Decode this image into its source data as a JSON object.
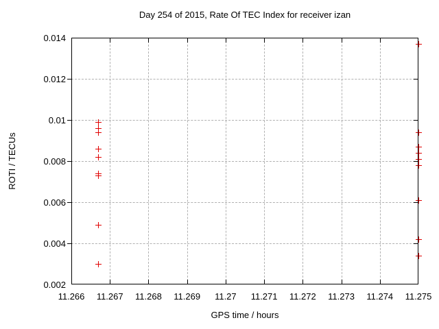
{
  "chart_data": {
    "type": "scatter",
    "title": "Day 254 of 2015, Rate Of TEC Index for receiver izan",
    "xlabel": "GPS time / hours",
    "ylabel": "ROTI / TECUs",
    "xlim": [
      11.266,
      11.275
    ],
    "ylim": [
      0.002,
      0.014
    ],
    "xticks": {
      "values": [
        11.266,
        11.267,
        11.268,
        11.269,
        11.27,
        11.271,
        11.272,
        11.273,
        11.274,
        11.275
      ],
      "labels": [
        "11.266",
        "11.267",
        "11.268",
        "11.269",
        "11.27",
        "11.271",
        "11.272",
        "11.273",
        "11.274",
        "11.275"
      ]
    },
    "yticks": {
      "values": [
        0.002,
        0.004,
        0.006,
        0.008,
        0.01,
        0.012,
        0.014
      ],
      "labels": [
        "0.002",
        "0.004",
        "0.006",
        "0.008",
        "0.01",
        "0.012",
        "0.014"
      ]
    },
    "grid": true,
    "grid_style": "dashed",
    "legend": false,
    "marker": "+",
    "marker_color": "#e00000",
    "series": [
      {
        "name": "ROTI",
        "points": [
          [
            11.2667,
            0.0099
          ],
          [
            11.2667,
            0.0096
          ],
          [
            11.2667,
            0.0094
          ],
          [
            11.2667,
            0.0086
          ],
          [
            11.2667,
            0.0082
          ],
          [
            11.2667,
            0.0074
          ],
          [
            11.2667,
            0.0073
          ],
          [
            11.2667,
            0.0049
          ],
          [
            11.2667,
            0.003
          ],
          [
            11.275,
            0.0137
          ],
          [
            11.275,
            0.0094
          ],
          [
            11.275,
            0.0087
          ],
          [
            11.275,
            0.0084
          ],
          [
            11.275,
            0.0081
          ],
          [
            11.275,
            0.0078
          ],
          [
            11.275,
            0.0061
          ],
          [
            11.275,
            0.0042
          ],
          [
            11.275,
            0.0034
          ]
        ]
      }
    ]
  }
}
